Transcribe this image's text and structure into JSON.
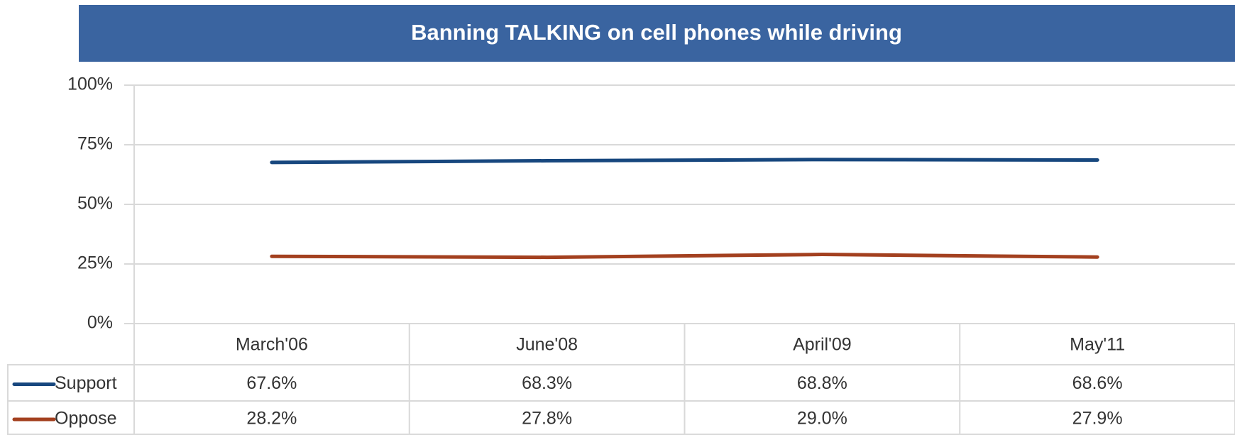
{
  "chart_data": {
    "type": "line",
    "title": "Banning TALKING on cell phones while driving",
    "categories": [
      "March'06",
      "June'08",
      "April'09",
      "May'11"
    ],
    "series": [
      {
        "name": "Support",
        "color": "#17477e",
        "values": [
          67.6,
          68.3,
          68.8,
          68.6
        ],
        "value_labels": [
          "67.6%",
          "68.3%",
          "68.8%",
          "68.6%"
        ]
      },
      {
        "name": "Oppose",
        "color": "#a3401f",
        "values": [
          28.2,
          27.8,
          29.0,
          27.9
        ],
        "value_labels": [
          "28.2%",
          "27.8%",
          "29.0%",
          "27.9%"
        ]
      }
    ],
    "ylim": [
      0,
      100
    ],
    "yticks": [
      {
        "value": 0,
        "label": "0%"
      },
      {
        "value": 25,
        "label": "25%"
      },
      {
        "value": 50,
        "label": "50%"
      },
      {
        "value": 75,
        "label": "75%"
      },
      {
        "value": 100,
        "label": "100%"
      }
    ],
    "grid": true
  }
}
